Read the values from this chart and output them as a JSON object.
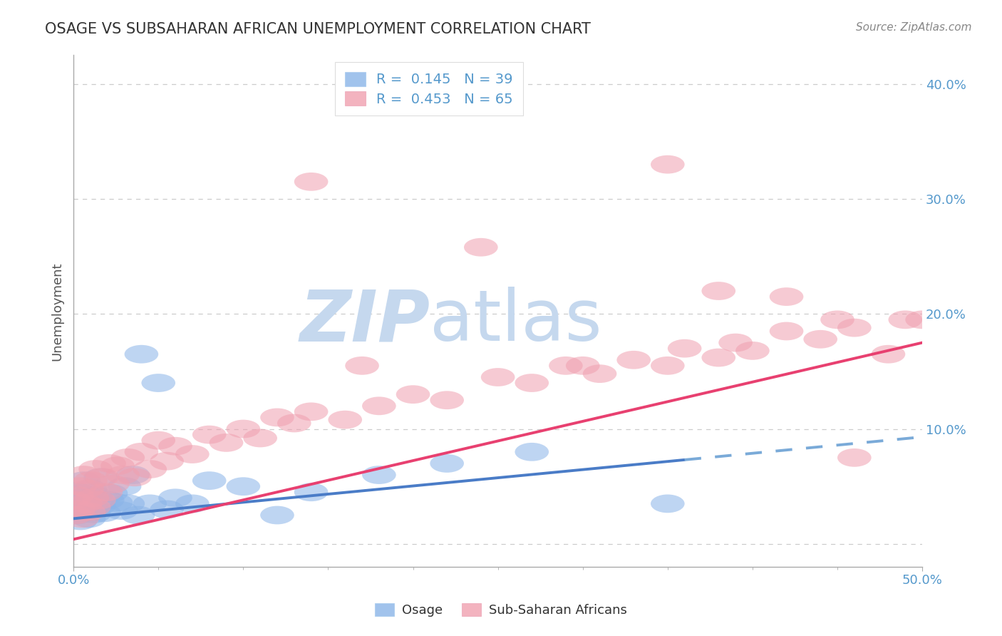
{
  "title": "OSAGE VS SUBSAHARAN AFRICAN UNEMPLOYMENT CORRELATION CHART",
  "source": "Source: ZipAtlas.com",
  "ylabel": "Unemployment",
  "xlim": [
    0.0,
    0.5
  ],
  "ylim": [
    -0.02,
    0.425
  ],
  "yticks": [
    0.0,
    0.1,
    0.2,
    0.3,
    0.4
  ],
  "ytick_labels": [
    "",
    "10.0%",
    "20.0%",
    "30.0%",
    "40.0%"
  ],
  "xtick_labels": [
    "0.0%",
    "50.0%"
  ],
  "legend_R1": "0.145",
  "legend_N1": "39",
  "legend_R2": "0.453",
  "legend_N2": "65",
  "blue_scatter": "#8ab4e8",
  "pink_scatter": "#f0a0b0",
  "line_blue_solid": "#4a7cc7",
  "line_blue_dash": "#7aaad8",
  "line_pink": "#e84070",
  "tick_color": "#5599cc",
  "grid_color": "#cccccc",
  "watermark_zip": "ZIP",
  "watermark_atlas": "atlas",
  "watermark_color_zip": "#c5d8ee",
  "watermark_color_atlas": "#c5d8ee",
  "title_color": "#333333",
  "source_color": "#888888",
  "ylabel_color": "#555555",
  "blue_line_solid_end": 0.36,
  "blue_line_dash_start": 0.36,
  "blue_line_y_at_0": 0.022,
  "blue_line_y_at_50": 0.093,
  "pink_line_y_at_0": 0.004,
  "pink_line_y_at_50": 0.175,
  "osage_x": [
    0.0,
    0.001,
    0.002,
    0.003,
    0.004,
    0.005,
    0.006,
    0.007,
    0.008,
    0.009,
    0.01,
    0.011,
    0.012,
    0.013,
    0.015,
    0.016,
    0.018,
    0.02,
    0.022,
    0.025,
    0.028,
    0.03,
    0.032,
    0.035,
    0.038,
    0.04,
    0.045,
    0.05,
    0.055,
    0.06,
    0.07,
    0.08,
    0.1,
    0.12,
    0.14,
    0.18,
    0.22,
    0.27,
    0.35
  ],
  "osage_y": [
    0.04,
    0.03,
    0.025,
    0.045,
    0.02,
    0.035,
    0.055,
    0.028,
    0.038,
    0.022,
    0.048,
    0.032,
    0.026,
    0.042,
    0.033,
    0.058,
    0.027,
    0.038,
    0.044,
    0.036,
    0.029,
    0.05,
    0.035,
    0.06,
    0.025,
    0.165,
    0.035,
    0.14,
    0.03,
    0.04,
    0.035,
    0.055,
    0.05,
    0.025,
    0.045,
    0.06,
    0.07,
    0.08,
    0.035
  ],
  "ssa_x": [
    0.0,
    0.001,
    0.002,
    0.003,
    0.004,
    0.005,
    0.006,
    0.007,
    0.008,
    0.009,
    0.01,
    0.011,
    0.012,
    0.013,
    0.015,
    0.017,
    0.019,
    0.021,
    0.023,
    0.026,
    0.029,
    0.032,
    0.036,
    0.04,
    0.045,
    0.05,
    0.055,
    0.06,
    0.07,
    0.08,
    0.09,
    0.1,
    0.11,
    0.12,
    0.13,
    0.14,
    0.16,
    0.18,
    0.2,
    0.22,
    0.25,
    0.27,
    0.29,
    0.31,
    0.33,
    0.35,
    0.36,
    0.38,
    0.39,
    0.4,
    0.42,
    0.44,
    0.45,
    0.46,
    0.48,
    0.49,
    0.5,
    0.17,
    0.3,
    0.42,
    0.24,
    0.35,
    0.14,
    0.38,
    0.46
  ],
  "ssa_y": [
    0.038,
    0.025,
    0.042,
    0.03,
    0.05,
    0.022,
    0.06,
    0.035,
    0.048,
    0.028,
    0.055,
    0.04,
    0.032,
    0.065,
    0.038,
    0.058,
    0.045,
    0.07,
    0.052,
    0.068,
    0.06,
    0.075,
    0.058,
    0.08,
    0.065,
    0.09,
    0.072,
    0.085,
    0.078,
    0.095,
    0.088,
    0.1,
    0.092,
    0.11,
    0.105,
    0.115,
    0.108,
    0.12,
    0.13,
    0.125,
    0.145,
    0.14,
    0.155,
    0.148,
    0.16,
    0.155,
    0.17,
    0.162,
    0.175,
    0.168,
    0.185,
    0.178,
    0.195,
    0.188,
    0.165,
    0.195,
    0.195,
    0.155,
    0.155,
    0.215,
    0.258,
    0.33,
    0.315,
    0.22,
    0.075
  ]
}
